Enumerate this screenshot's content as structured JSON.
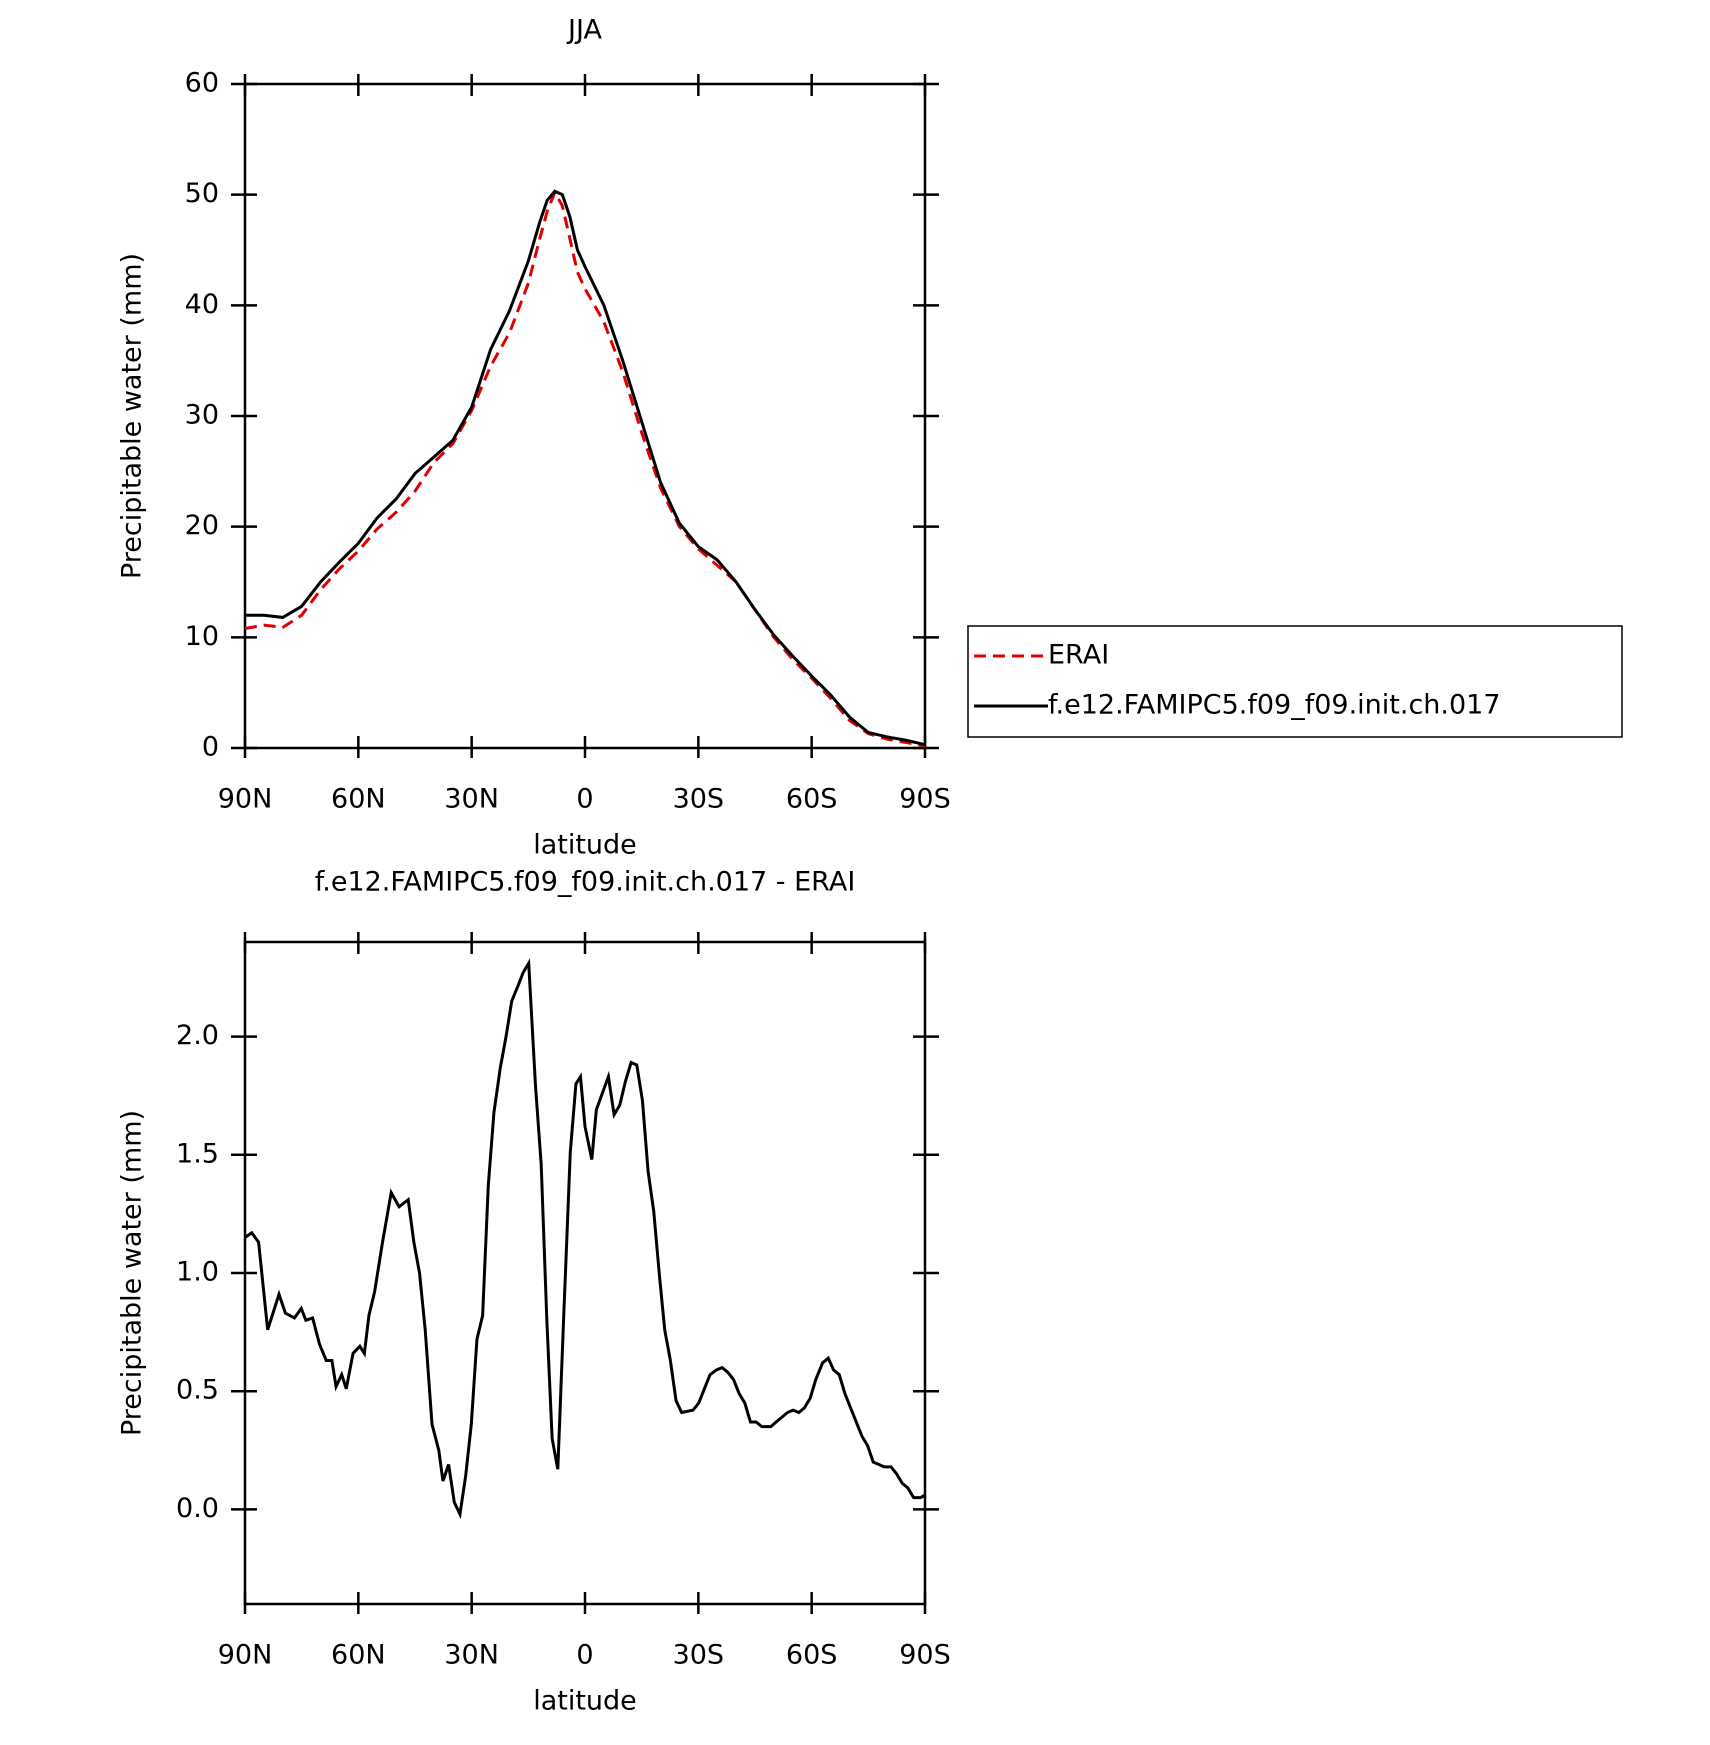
{
  "chart_data": [
    {
      "type": "line",
      "title": "JJA",
      "x_label": "latitude",
      "y_label": "Precipitable water (mm)",
      "x": [
        90,
        85,
        80,
        75,
        70,
        65,
        60,
        55,
        50,
        45,
        40,
        35,
        30,
        25,
        20,
        15,
        12,
        10,
        8,
        6,
        4,
        2,
        0,
        -5,
        -10,
        -15,
        -20,
        -25,
        -30,
        -35,
        -40,
        -45,
        -50,
        -55,
        -60,
        -65,
        -70,
        -75,
        -80,
        -85,
        -90
      ],
      "series": [
        {
          "name": "ERAI",
          "color": "#e00000",
          "style": "dashed",
          "values": [
            10.8,
            11.1,
            10.9,
            12,
            14.3,
            16.2,
            17.8,
            19.8,
            21.3,
            23.2,
            25.8,
            27.5,
            30.5,
            34.5,
            37.5,
            42,
            46,
            48.5,
            50.2,
            49,
            46,
            43,
            41.5,
            38.5,
            34,
            28.5,
            23.5,
            20,
            18,
            16.5,
            15,
            12.5,
            10,
            8,
            6.3,
            4.5,
            2.5,
            1.3,
            0.8,
            0.5,
            0.2
          ]
        },
        {
          "name": "f.e12.FAMIPC5.f09_f09.init.ch.017",
          "color": "#000000",
          "style": "solid",
          "values": [
            12,
            12,
            11.8,
            12.8,
            15,
            16.8,
            18.5,
            20.8,
            22.5,
            24.8,
            26.3,
            27.8,
            30.8,
            36,
            39.5,
            44,
            47.5,
            49.5,
            50.3,
            50,
            48,
            45,
            43.5,
            40,
            35,
            29.5,
            24,
            20.3,
            18.2,
            17,
            15,
            12.5,
            10.2,
            8.3,
            6.5,
            4.8,
            2.8,
            1.4,
            1,
            0.7,
            0.3
          ]
        }
      ],
      "xlim": [
        90,
        -90
      ],
      "xticks": [
        {
          "value": 90,
          "label": "90N"
        },
        {
          "value": 60,
          "label": "60N"
        },
        {
          "value": 30,
          "label": "30N"
        },
        0,
        {
          "value": -30,
          "label": "30S"
        },
        {
          "value": -60,
          "label": "60S"
        },
        {
          "value": -90,
          "label": "90S"
        }
      ],
      "ylim": [
        0,
        60
      ],
      "yticks": [
        0,
        10,
        20,
        30,
        40,
        50,
        60
      ],
      "legend": "right"
    },
    {
      "type": "line",
      "title": "f.e12.FAMIPC5.f09_f09.init.ch.017 - ERAI",
      "x_label": "latitude",
      "y_label": "Precipitable water (mm)",
      "x": [
        90,
        88.2,
        86.4,
        84,
        81,
        79.3,
        76.9,
        75.1,
        73.9,
        72.1,
        70.3,
        68.5,
        67,
        65.9,
        64.4,
        63.2,
        61.4,
        59.6,
        58.4,
        57.2,
        55.7,
        53.6,
        51.3,
        49.2,
        46.8,
        45.3,
        43.8,
        42.3,
        40.5,
        38.7,
        37.6,
        36.1,
        34.6,
        33.1,
        31.6,
        30.1,
        28.6,
        27.1,
        25.6,
        24.1,
        22.4,
        20.9,
        19.4,
        17.6,
        16.4,
        14.9,
        13.1,
        11.6,
        10.1,
        8.7,
        7.2,
        5.7,
        3.9,
        2.4,
        1.2,
        0,
        -1.8,
        -3,
        -4.8,
        -6.2,
        -7.7,
        -9.2,
        -10.7,
        -12.2,
        -13.7,
        -15.2,
        -16.7,
        -18.2,
        -19.7,
        -21.1,
        -22.6,
        -24.1,
        -25.6,
        -28.6,
        -30.1,
        -31.6,
        -33.1,
        -34.8,
        -36.3,
        -37.8,
        -39.3,
        -40.8,
        -42.3,
        -43.8,
        -45.3,
        -46.8,
        -49.2,
        -50.6,
        -52.1,
        -53.6,
        -55.1,
        -56.6,
        -58.1,
        -59.6,
        -61.1,
        -62.9,
        -64.4,
        -65.8,
        -67.3,
        -68.8,
        -70.3,
        -71.8,
        -73.3,
        -74.8,
        -76.3,
        -77.8,
        -79.2,
        -81,
        -82.5,
        -84,
        -85.5,
        -87,
        -88.8,
        -90
      ],
      "series": [
        {
          "color": "#000000",
          "style": "solid",
          "values": [
            1.15,
            1.17,
            1.13,
            0.76,
            0.91,
            0.83,
            0.81,
            0.85,
            0.8,
            0.81,
            0.7,
            0.63,
            0.63,
            0.52,
            0.57,
            0.51,
            0.66,
            0.69,
            0.66,
            0.82,
            0.92,
            1.13,
            1.34,
            1.28,
            1.31,
            1.13,
            1,
            0.76,
            0.36,
            0.25,
            0.12,
            0.19,
            0.03,
            -0.02,
            0.14,
            0.36,
            0.72,
            0.82,
            1.37,
            1.68,
            1.87,
            2,
            2.15,
            2.22,
            2.27,
            2.31,
            1.79,
            1.46,
            0.8,
            0.3,
            0.17,
            0.79,
            1.51,
            1.8,
            1.83,
            1.62,
            1.48,
            1.69,
            1.77,
            1.83,
            1.67,
            1.71,
            1.81,
            1.89,
            1.88,
            1.73,
            1.43,
            1.26,
            0.99,
            0.76,
            0.63,
            0.46,
            0.41,
            0.42,
            0.45,
            0.51,
            0.57,
            0.59,
            0.6,
            0.58,
            0.55,
            0.49,
            0.45,
            0.37,
            0.37,
            0.35,
            0.35,
            0.37,
            0.39,
            0.41,
            0.42,
            0.41,
            0.43,
            0.47,
            0.55,
            0.62,
            0.64,
            0.59,
            0.57,
            0.49,
            0.43,
            0.37,
            0.31,
            0.27,
            0.2,
            0.19,
            0.18,
            0.18,
            0.15,
            0.11,
            0.09,
            0.05,
            0.05,
            0.06
          ]
        }
      ],
      "xlim": [
        90,
        -90
      ],
      "xticks": [
        {
          "value": 90,
          "label": "90N"
        },
        {
          "value": 60,
          "label": "60N"
        },
        {
          "value": 30,
          "label": "30N"
        },
        0,
        {
          "value": -30,
          "label": "30S"
        },
        {
          "value": -60,
          "label": "60S"
        },
        {
          "value": -90,
          "label": "90S"
        }
      ],
      "ylim": [
        -0.4,
        2.4
      ],
      "yticks": [
        {
          "value": 0,
          "label": "0.0"
        },
        {
          "value": 0.5,
          "label": "0.5"
        },
        {
          "value": 1,
          "label": "1.0"
        },
        {
          "value": 1.5,
          "label": "1.5"
        },
        {
          "value": 2,
          "label": "2.0"
        }
      ]
    }
  ]
}
